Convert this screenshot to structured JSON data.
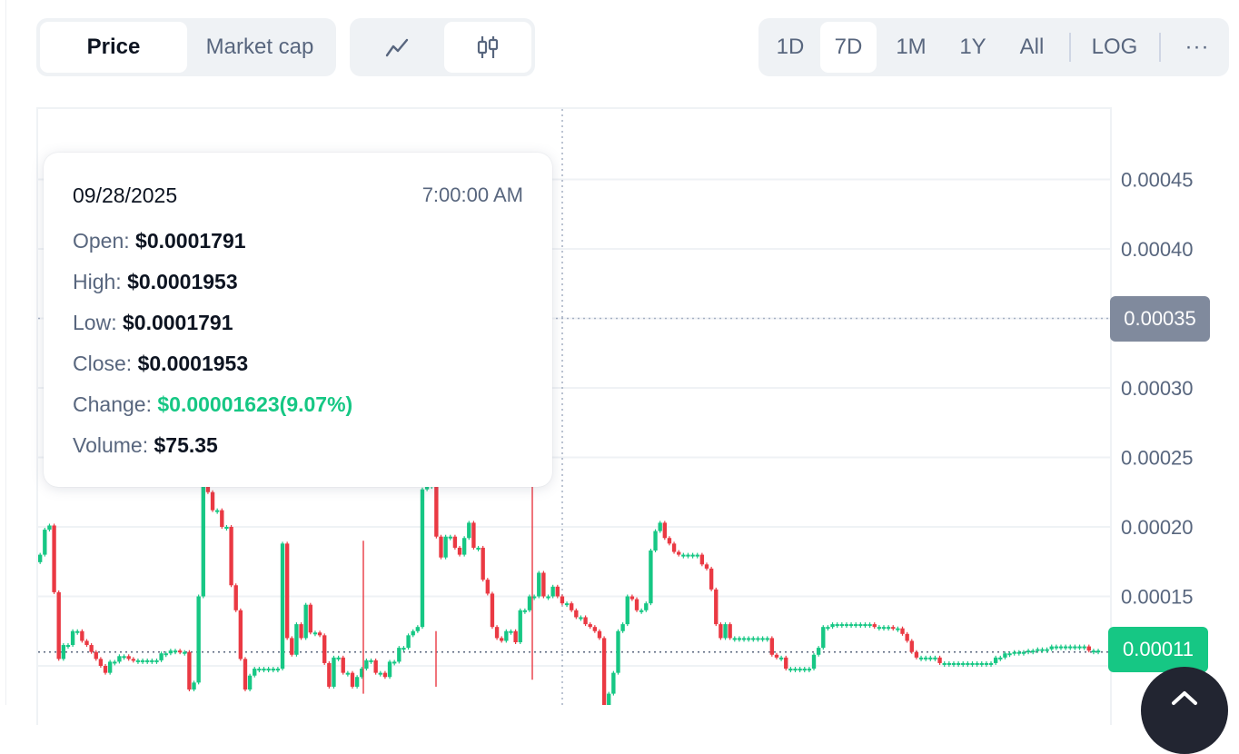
{
  "toolbar": {
    "metric_tabs": [
      {
        "label": "Price",
        "active": true
      },
      {
        "label": "Market cap",
        "active": false
      }
    ],
    "chart_type_buttons": [
      {
        "icon": "line-chart-icon",
        "active": false
      },
      {
        "icon": "candlestick-icon",
        "active": true
      }
    ],
    "range_buttons": [
      {
        "label": "1D",
        "active": false
      },
      {
        "label": "7D",
        "active": true
      },
      {
        "label": "1M",
        "active": false
      },
      {
        "label": "1Y",
        "active": false
      },
      {
        "label": "All",
        "active": false
      }
    ],
    "log_label": "LOG",
    "more_label": "···"
  },
  "tooltip": {
    "date": "09/28/2025",
    "time": "7:00:00 AM",
    "open_label": "Open:",
    "open_value": "$0.0001791",
    "high_label": "High:",
    "high_value": "$0.0001953",
    "low_label": "Low:",
    "low_value": "$0.0001791",
    "close_label": "Close:",
    "close_value": "$0.0001953",
    "change_label": "Change:",
    "change_value": "$0.00001623(9.07%)",
    "volume_label": "Volume:",
    "volume_value": "$75.35"
  },
  "crosshair_price_label": "0.00035",
  "current_price_label": "0.00011",
  "colors": {
    "up": "#16c784",
    "down": "#ea3943",
    "crosshair_tag": "#808a9d",
    "axis_text": "#58667e",
    "grid": "#eff2f5"
  },
  "fab_icon": "chevron-up-icon",
  "chart_data": {
    "type": "candlestick",
    "ylim": [
      8.5e-05,
      0.0005
    ],
    "ytick_values": [
      0.00045,
      0.0004,
      0.0003,
      0.00025,
      0.0002,
      0.00015
    ],
    "ytick_labels": [
      "0.00045",
      "0.00040",
      "0.00030",
      "0.00025",
      "0.00020",
      "0.00015"
    ],
    "crosshair_price": 0.00035,
    "current_price": 0.00011,
    "close_series": [
      0.00018,
      0.000198,
      0.000201,
      0.000153,
      0.000105,
      0.000115,
      0.000115,
      0.000125,
      0.000125,
      0.000118,
      0.000115,
      0.00011,
      0.000105,
      0.0001,
      9.5e-05,
      0.000103,
      0.000103,
      0.000107,
      0.000107,
      0.000105,
      0.000104,
      0.000104,
      0.000104,
      0.000104,
      0.000104,
      0.000104,
      0.000109,
      0.000109,
      0.000111,
      0.000111,
      0.00011,
      0.00011,
      8.3e-05,
      8.8e-05,
      0.00015,
      0.00023,
      0.000225,
      0.000212,
      0.000212,
      0.0002,
      0.0002,
      0.000158,
      0.00014,
      0.000105,
      8.3e-05,
      9.3e-05,
      9.8e-05,
      9.8e-05,
      9.8e-05,
      9.8e-05,
      9.8e-05,
      9.8e-05,
      0.000188,
      0.00012,
      0.000108,
      0.00013,
      0.00012,
      0.000144,
      0.000124,
      0.000124,
      0.000122,
      0.000102,
      8.5e-05,
      0.000106,
      0.000106,
      9.5e-05,
      9.5e-05,
      8.5e-05,
      9.2e-05,
      9.8e-05,
      0.000104,
      0.000104,
      9.5e-05,
      9.5e-05,
      9.2e-05,
      0.000103,
      0.000103,
      0.000113,
      0.000113,
      0.000122,
      0.000125,
      0.000128,
      0.000227,
      0.00023,
      0.00023,
      0.000193,
      0.000178,
      0.000193,
      0.000193,
      0.000185,
      0.00018,
      0.000192,
      0.000203,
      0.000185,
      0.000185,
      0.000162,
      0.000152,
      0.000128,
      0.00012,
      0.000118,
      0.000125,
      0.000125,
      0.000117,
      0.00014,
      0.00014,
      0.00015,
      0.00015,
      0.000167,
      0.00015,
      0.00015,
      0.000157,
      0.00015,
      0.000145,
      0.000145,
      0.00014,
      0.000135,
      0.000135,
      0.00013,
      0.000128,
      0.000125,
      0.00012,
      7e-05,
      8e-05,
      9.5e-05,
      0.000125,
      0.00013,
      0.00015,
      0.000148,
      0.00014,
      0.00014,
      0.000145,
      0.000183,
      0.000197,
      0.000203,
      0.000192,
      0.000188,
      0.000182,
      0.00018,
      0.00018,
      0.00018,
      0.00018,
      0.00018,
      0.000173,
      0.00017,
      0.000155,
      0.00013,
      0.00012,
      0.00013,
      0.00012,
      0.00012,
      0.00012,
      0.00012,
      0.00012,
      0.00012,
      0.00012,
      0.00012,
      0.00012,
      0.000108,
      0.000106,
      0.000106,
      9.8e-05,
      9.8e-05,
      9.8e-05,
      9.8e-05,
      9.8e-05,
      9.8e-05,
      0.000108,
      0.000113,
      0.000128,
      0.000128,
      0.00013,
      0.00013,
      0.00013,
      0.00013,
      0.00013,
      0.00013,
      0.00013,
      0.00013,
      0.00013,
      0.000128,
      0.000128,
      0.000128,
      0.000128,
      0.000127,
      0.000127,
      0.000123,
      0.000118,
      0.00011,
      0.000106,
      0.000106,
      0.000106,
      0.000106,
      0.000106,
      0.000102,
      0.000102,
      0.000102,
      0.000102,
      0.000102,
      0.000102,
      0.000102,
      0.000102,
      0.000102,
      0.000102,
      0.000102,
      0.000102,
      0.000106,
      0.000106,
      0.000109,
      0.000109,
      0.00011,
      0.00011,
      0.00011,
      0.000111,
      0.000111,
      0.000112,
      0.000112,
      0.000112,
      0.000114,
      0.000114,
      0.000114,
      0.000114,
      0.000114,
      0.000114,
      0.000114,
      0.000114,
      0.000111,
      0.000111,
      0.000111
    ]
  }
}
